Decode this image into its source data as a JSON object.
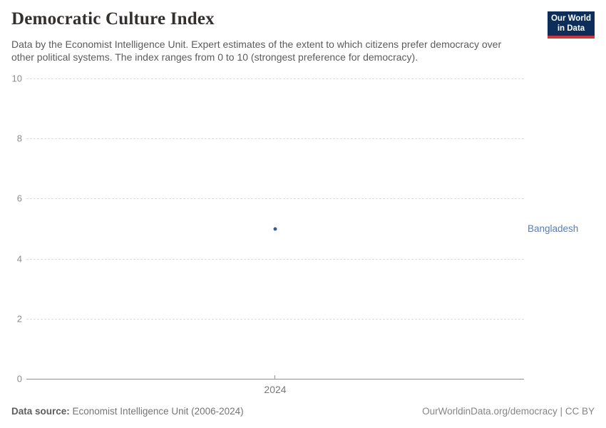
{
  "header": {
    "title": "Democratic Culture Index",
    "subtitle_lines": [
      "Data by the Economist Intelligence Unit. Expert estimates of the extent to which citizens prefer democracy over",
      "other political systems. The index ranges from 0 to 10 (strongest preference for democracy)."
    ],
    "logo": {
      "line1": "Our World",
      "line2": "in Data",
      "background_color": "#0d2e5a",
      "accent_color": "#d0353a"
    }
  },
  "chart_data": {
    "type": "scatter",
    "title": "Democratic Culture Index",
    "x": [
      2024
    ],
    "series": [
      {
        "name": "Bangladesh",
        "values": [
          5
        ],
        "color": "#3a5e94",
        "label_color": "#5b7db1"
      }
    ],
    "xlabel": "",
    "ylabel": "",
    "ylim": [
      0,
      10
    ],
    "yticks": [
      0,
      2,
      4,
      6,
      8,
      10
    ],
    "xtick_labels": [
      "2024"
    ],
    "grid": "horizontal-dashed",
    "gridline_color": "#dcdcdc",
    "axis_color": "#8f8f8f",
    "legend_position": "right-of-point"
  },
  "footer": {
    "source_label": "Data source:",
    "source_value": " Economist Intelligence Unit (2006-2024)",
    "attribution": "OurWorldinData.org/democracy | CC BY"
  }
}
